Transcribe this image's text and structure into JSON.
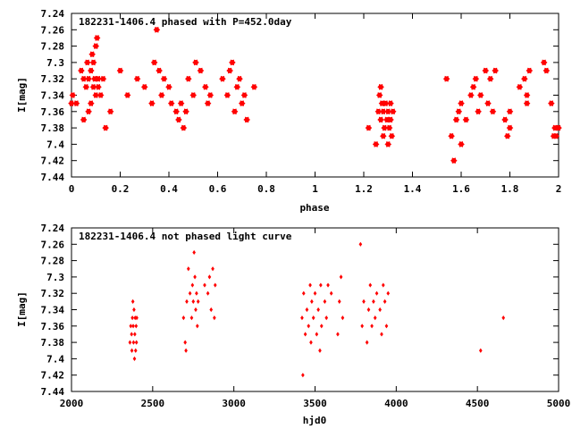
{
  "chart_data": [
    {
      "type": "scatter",
      "title": "182231-1406.4 phased with P=452.0day",
      "xlabel": "phase",
      "ylabel": "I[mag]",
      "xlim": [
        0,
        2
      ],
      "ylim": [
        7.44,
        7.24
      ],
      "y_inverted": true,
      "x_ticks": [
        0,
        0.2,
        0.4,
        0.6,
        0.8,
        1,
        1.2,
        1.4,
        1.6,
        1.8,
        2
      ],
      "x_tick_labels": [
        "0",
        "0.2",
        "0.4",
        "0.6",
        "0.8",
        "1",
        "1.2",
        "1.4",
        "1.6",
        "1.8",
        "2"
      ],
      "y_ticks": [
        7.24,
        7.26,
        7.28,
        7.3,
        7.32,
        7.34,
        7.36,
        7.38,
        7.4,
        7.42,
        7.44
      ],
      "y_tick_labels": [
        "7.24",
        "7.26",
        "7.28",
        "7.3",
        "7.32",
        "7.34",
        "7.36",
        "7.38",
        "7.4",
        "7.42",
        "7.44"
      ],
      "grid": false,
      "marker": "star",
      "color": "#ff0000",
      "points": [
        [
          0.0,
          7.35
        ],
        [
          0.005,
          7.34
        ],
        [
          0.02,
          7.35
        ],
        [
          0.04,
          7.31
        ],
        [
          0.05,
          7.32
        ],
        [
          0.05,
          7.37
        ],
        [
          0.06,
          7.33
        ],
        [
          0.065,
          7.3
        ],
        [
          0.07,
          7.36
        ],
        [
          0.07,
          7.32
        ],
        [
          0.08,
          7.35
        ],
        [
          0.08,
          7.31
        ],
        [
          0.085,
          7.29
        ],
        [
          0.09,
          7.33
        ],
        [
          0.09,
          7.3
        ],
        [
          0.095,
          7.32
        ],
        [
          0.1,
          7.28
        ],
        [
          0.1,
          7.34
        ],
        [
          0.105,
          7.27
        ],
        [
          0.11,
          7.32
        ],
        [
          0.11,
          7.33
        ],
        [
          0.12,
          7.34
        ],
        [
          0.13,
          7.32
        ],
        [
          0.14,
          7.38
        ],
        [
          0.16,
          7.36
        ],
        [
          0.2,
          7.31
        ],
        [
          0.23,
          7.34
        ],
        [
          0.27,
          7.32
        ],
        [
          0.3,
          7.33
        ],
        [
          0.33,
          7.35
        ],
        [
          0.34,
          7.3
        ],
        [
          0.35,
          7.26
        ],
        [
          0.36,
          7.31
        ],
        [
          0.37,
          7.34
        ],
        [
          0.38,
          7.32
        ],
        [
          0.4,
          7.33
        ],
        [
          0.41,
          7.35
        ],
        [
          0.43,
          7.36
        ],
        [
          0.44,
          7.37
        ],
        [
          0.45,
          7.35
        ],
        [
          0.46,
          7.38
        ],
        [
          0.47,
          7.36
        ],
        [
          0.48,
          7.32
        ],
        [
          0.5,
          7.34
        ],
        [
          0.51,
          7.3
        ],
        [
          0.53,
          7.31
        ],
        [
          0.55,
          7.33
        ],
        [
          0.56,
          7.35
        ],
        [
          0.57,
          7.34
        ],
        [
          0.62,
          7.32
        ],
        [
          0.64,
          7.34
        ],
        [
          0.65,
          7.31
        ],
        [
          0.66,
          7.3
        ],
        [
          0.67,
          7.36
        ],
        [
          0.68,
          7.33
        ],
        [
          0.69,
          7.32
        ],
        [
          0.7,
          7.35
        ],
        [
          0.71,
          7.34
        ],
        [
          0.72,
          7.37
        ],
        [
          0.75,
          7.33
        ],
        [
          1.22,
          7.38
        ],
        [
          1.25,
          7.4
        ],
        [
          1.26,
          7.36
        ],
        [
          1.265,
          7.34
        ],
        [
          1.27,
          7.33
        ],
        [
          1.27,
          7.37
        ],
        [
          1.275,
          7.35
        ],
        [
          1.28,
          7.39
        ],
        [
          1.28,
          7.36
        ],
        [
          1.285,
          7.38
        ],
        [
          1.29,
          7.35
        ],
        [
          1.295,
          7.37
        ],
        [
          1.3,
          7.4
        ],
        [
          1.3,
          7.36
        ],
        [
          1.305,
          7.38
        ],
        [
          1.31,
          7.35
        ],
        [
          1.31,
          7.37
        ],
        [
          1.315,
          7.39
        ],
        [
          1.32,
          7.36
        ],
        [
          1.54,
          7.32
        ],
        [
          1.56,
          7.39
        ],
        [
          1.57,
          7.42
        ],
        [
          1.58,
          7.37
        ],
        [
          1.59,
          7.36
        ],
        [
          1.6,
          7.4
        ],
        [
          1.6,
          7.35
        ],
        [
          1.62,
          7.37
        ],
        [
          1.64,
          7.34
        ],
        [
          1.65,
          7.33
        ],
        [
          1.66,
          7.32
        ],
        [
          1.67,
          7.36
        ],
        [
          1.68,
          7.34
        ],
        [
          1.7,
          7.31
        ],
        [
          1.71,
          7.35
        ],
        [
          1.72,
          7.32
        ],
        [
          1.73,
          7.36
        ],
        [
          1.74,
          7.31
        ],
        [
          1.78,
          7.37
        ],
        [
          1.79,
          7.39
        ],
        [
          1.8,
          7.36
        ],
        [
          1.8,
          7.38
        ],
        [
          1.84,
          7.33
        ],
        [
          1.86,
          7.32
        ],
        [
          1.87,
          7.35
        ],
        [
          1.87,
          7.34
        ],
        [
          1.88,
          7.31
        ],
        [
          1.94,
          7.3
        ],
        [
          1.95,
          7.31
        ],
        [
          1.97,
          7.35
        ],
        [
          1.98,
          7.39
        ],
        [
          1.985,
          7.38
        ],
        [
          1.99,
          7.39
        ],
        [
          2.0,
          7.38
        ]
      ]
    },
    {
      "type": "scatter",
      "title": "182231-1406.4 not phased light curve",
      "xlabel": "hjd0",
      "ylabel": "I[mag]",
      "xlim": [
        2000,
        5000
      ],
      "ylim": [
        7.44,
        7.24
      ],
      "y_inverted": true,
      "x_ticks": [
        2000,
        2500,
        3000,
        3500,
        4000,
        4500,
        5000
      ],
      "x_tick_labels": [
        "2000",
        "2500",
        "3000",
        "3500",
        "4000",
        "4500",
        "5000"
      ],
      "y_ticks": [
        7.24,
        7.26,
        7.28,
        7.3,
        7.32,
        7.34,
        7.36,
        7.38,
        7.4,
        7.42,
        7.44
      ],
      "y_tick_labels": [
        "7.24",
        "7.26",
        "7.28",
        "7.3",
        "7.32",
        "7.34",
        "7.36",
        "7.38",
        "7.4",
        "7.42",
        "7.44"
      ],
      "grid": false,
      "marker": "diamond",
      "color": "#ff0000",
      "points": [
        [
          2360,
          7.38
        ],
        [
          2365,
          7.36
        ],
        [
          2370,
          7.37
        ],
        [
          2372,
          7.39
        ],
        [
          2375,
          7.35
        ],
        [
          2378,
          7.33
        ],
        [
          2380,
          7.36
        ],
        [
          2382,
          7.38
        ],
        [
          2385,
          7.34
        ],
        [
          2388,
          7.4
        ],
        [
          2390,
          7.37
        ],
        [
          2392,
          7.35
        ],
        [
          2395,
          7.39
        ],
        [
          2398,
          7.36
        ],
        [
          2400,
          7.38
        ],
        [
          2402,
          7.35
        ],
        [
          2690,
          7.35
        ],
        [
          2700,
          7.38
        ],
        [
          2705,
          7.39
        ],
        [
          2710,
          7.33
        ],
        [
          2720,
          7.29
        ],
        [
          2730,
          7.32
        ],
        [
          2740,
          7.35
        ],
        [
          2745,
          7.31
        ],
        [
          2750,
          7.33
        ],
        [
          2755,
          7.27
        ],
        [
          2760,
          7.3
        ],
        [
          2765,
          7.34
        ],
        [
          2770,
          7.32
        ],
        [
          2775,
          7.36
        ],
        [
          2780,
          7.33
        ],
        [
          2820,
          7.31
        ],
        [
          2840,
          7.32
        ],
        [
          2850,
          7.3
        ],
        [
          2860,
          7.34
        ],
        [
          2870,
          7.29
        ],
        [
          2880,
          7.35
        ],
        [
          2885,
          7.31
        ],
        [
          3420,
          7.35
        ],
        [
          3425,
          7.42
        ],
        [
          3430,
          7.32
        ],
        [
          3440,
          7.37
        ],
        [
          3450,
          7.34
        ],
        [
          3460,
          7.36
        ],
        [
          3470,
          7.31
        ],
        [
          3475,
          7.38
        ],
        [
          3480,
          7.33
        ],
        [
          3490,
          7.35
        ],
        [
          3500,
          7.32
        ],
        [
          3510,
          7.37
        ],
        [
          3520,
          7.34
        ],
        [
          3530,
          7.39
        ],
        [
          3535,
          7.31
        ],
        [
          3540,
          7.36
        ],
        [
          3560,
          7.33
        ],
        [
          3570,
          7.35
        ],
        [
          3580,
          7.31
        ],
        [
          3600,
          7.32
        ],
        [
          3640,
          7.37
        ],
        [
          3650,
          7.33
        ],
        [
          3660,
          7.3
        ],
        [
          3670,
          7.35
        ],
        [
          3780,
          7.26
        ],
        [
          3790,
          7.36
        ],
        [
          3800,
          7.33
        ],
        [
          3820,
          7.38
        ],
        [
          3830,
          7.34
        ],
        [
          3840,
          7.31
        ],
        [
          3850,
          7.36
        ],
        [
          3860,
          7.33
        ],
        [
          3870,
          7.35
        ],
        [
          3880,
          7.32
        ],
        [
          3900,
          7.34
        ],
        [
          3910,
          7.37
        ],
        [
          3920,
          7.31
        ],
        [
          3930,
          7.33
        ],
        [
          3940,
          7.36
        ],
        [
          3950,
          7.32
        ],
        [
          4520,
          7.39
        ],
        [
          4660,
          7.35
        ]
      ]
    }
  ]
}
